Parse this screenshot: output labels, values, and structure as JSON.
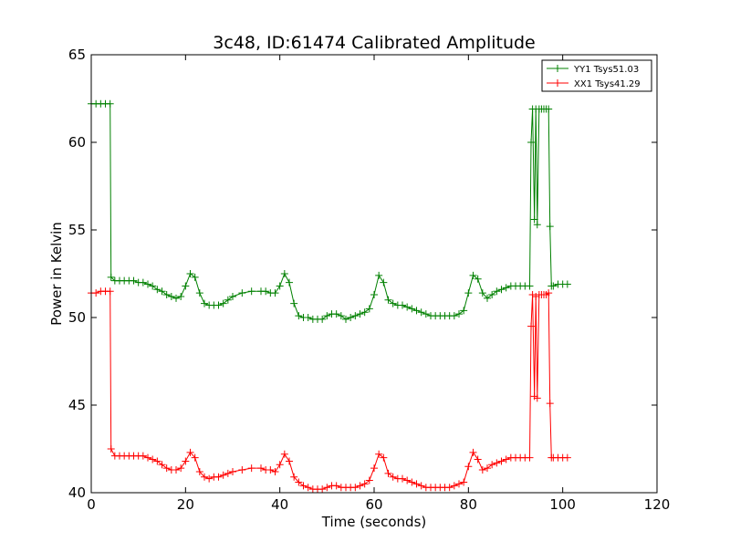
{
  "chart_data": {
    "type": "line",
    "title": "3c48, ID:61474 Calibrated Amplitude",
    "xlabel": "Time (seconds)",
    "ylabel": "Power in Kelvin",
    "xlim": [
      0,
      120
    ],
    "ylim": [
      40,
      65
    ],
    "xticks": [
      0,
      20,
      40,
      60,
      80,
      100,
      120
    ],
    "yticks": [
      40,
      45,
      50,
      55,
      60,
      65
    ],
    "grid": false,
    "legend_position": "top-right",
    "marker": "plus",
    "series": [
      {
        "name": "YY1 Tsys51.03",
        "color": "#008000",
        "points": [
          [
            0,
            62.2
          ],
          [
            1,
            62.2
          ],
          [
            2,
            62.2
          ],
          [
            3,
            62.2
          ],
          [
            4,
            62.2
          ],
          [
            4.2,
            52.3
          ],
          [
            5,
            52.1
          ],
          [
            6,
            52.1
          ],
          [
            7,
            52.1
          ],
          [
            8,
            52.1
          ],
          [
            9,
            52.1
          ],
          [
            10,
            52.0
          ],
          [
            11,
            52.0
          ],
          [
            12,
            51.9
          ],
          [
            13,
            51.8
          ],
          [
            14,
            51.6
          ],
          [
            15,
            51.5
          ],
          [
            16,
            51.3
          ],
          [
            17,
            51.2
          ],
          [
            18,
            51.1
          ],
          [
            19,
            51.2
          ],
          [
            20,
            51.8
          ],
          [
            21,
            52.5
          ],
          [
            22,
            52.3
          ],
          [
            23,
            51.4
          ],
          [
            24,
            50.8
          ],
          [
            25,
            50.7
          ],
          [
            26,
            50.7
          ],
          [
            27,
            50.7
          ],
          [
            28,
            50.8
          ],
          [
            29,
            51.0
          ],
          [
            30,
            51.2
          ],
          [
            32,
            51.4
          ],
          [
            34,
            51.5
          ],
          [
            36,
            51.5
          ],
          [
            37,
            51.5
          ],
          [
            38,
            51.4
          ],
          [
            39,
            51.4
          ],
          [
            40,
            51.8
          ],
          [
            41,
            52.5
          ],
          [
            42,
            52.0
          ],
          [
            43,
            50.8
          ],
          [
            44,
            50.1
          ],
          [
            45,
            50.0
          ],
          [
            46,
            50.0
          ],
          [
            47,
            49.9
          ],
          [
            48,
            49.9
          ],
          [
            49,
            49.9
          ],
          [
            50,
            50.1
          ],
          [
            51,
            50.2
          ],
          [
            52,
            50.2
          ],
          [
            53,
            50.1
          ],
          [
            54,
            49.9
          ],
          [
            55,
            50.0
          ],
          [
            56,
            50.1
          ],
          [
            57,
            50.2
          ],
          [
            58,
            50.3
          ],
          [
            59,
            50.5
          ],
          [
            60,
            51.3
          ],
          [
            61,
            52.4
          ],
          [
            62,
            52.0
          ],
          [
            63,
            51.0
          ],
          [
            64,
            50.8
          ],
          [
            65,
            50.7
          ],
          [
            66,
            50.7
          ],
          [
            67,
            50.6
          ],
          [
            68,
            50.5
          ],
          [
            69,
            50.4
          ],
          [
            70,
            50.3
          ],
          [
            71,
            50.2
          ],
          [
            72,
            50.1
          ],
          [
            73,
            50.1
          ],
          [
            74,
            50.1
          ],
          [
            75,
            50.1
          ],
          [
            76,
            50.1
          ],
          [
            77,
            50.1
          ],
          [
            78,
            50.2
          ],
          [
            79,
            50.4
          ],
          [
            80,
            51.4
          ],
          [
            81,
            52.4
          ],
          [
            82,
            52.2
          ],
          [
            83,
            51.4
          ],
          [
            84,
            51.1
          ],
          [
            85,
            51.3
          ],
          [
            86,
            51.5
          ],
          [
            87,
            51.6
          ],
          [
            88,
            51.7
          ],
          [
            89,
            51.8
          ],
          [
            90,
            51.8
          ],
          [
            91,
            51.8
          ],
          [
            92,
            51.8
          ],
          [
            93,
            51.8
          ],
          [
            93.3,
            60.0
          ],
          [
            93.6,
            61.9
          ],
          [
            94.0,
            55.6
          ],
          [
            94.3,
            61.9
          ],
          [
            94.6,
            55.3
          ],
          [
            95,
            61.9
          ],
          [
            95.5,
            61.9
          ],
          [
            96,
            61.9
          ],
          [
            96.5,
            61.9
          ],
          [
            97,
            61.9
          ],
          [
            97.3,
            55.2
          ],
          [
            97.6,
            51.8
          ],
          [
            98,
            51.8
          ],
          [
            99,
            51.9
          ],
          [
            100,
            51.9
          ],
          [
            101,
            51.9
          ]
        ]
      },
      {
        "name": "XX1 Tsys41.29",
        "color": "#ff0000",
        "points": [
          [
            0,
            51.4
          ],
          [
            1,
            51.4
          ],
          [
            2,
            51.5
          ],
          [
            3,
            51.5
          ],
          [
            4,
            51.5
          ],
          [
            4.2,
            42.5
          ],
          [
            5,
            42.1
          ],
          [
            6,
            42.1
          ],
          [
            7,
            42.1
          ],
          [
            8,
            42.1
          ],
          [
            9,
            42.1
          ],
          [
            10,
            42.1
          ],
          [
            11,
            42.1
          ],
          [
            12,
            42.0
          ],
          [
            13,
            41.9
          ],
          [
            14,
            41.8
          ],
          [
            15,
            41.6
          ],
          [
            16,
            41.4
          ],
          [
            17,
            41.3
          ],
          [
            18,
            41.3
          ],
          [
            19,
            41.4
          ],
          [
            20,
            41.8
          ],
          [
            21,
            42.3
          ],
          [
            22,
            42.0
          ],
          [
            23,
            41.2
          ],
          [
            24,
            40.9
          ],
          [
            25,
            40.8
          ],
          [
            26,
            40.9
          ],
          [
            27,
            40.9
          ],
          [
            28,
            41.0
          ],
          [
            29,
            41.1
          ],
          [
            30,
            41.2
          ],
          [
            32,
            41.3
          ],
          [
            34,
            41.4
          ],
          [
            36,
            41.4
          ],
          [
            37,
            41.3
          ],
          [
            38,
            41.3
          ],
          [
            39,
            41.2
          ],
          [
            40,
            41.6
          ],
          [
            41,
            42.2
          ],
          [
            42,
            41.8
          ],
          [
            43,
            40.9
          ],
          [
            44,
            40.6
          ],
          [
            45,
            40.4
          ],
          [
            46,
            40.3
          ],
          [
            47,
            40.2
          ],
          [
            48,
            40.2
          ],
          [
            49,
            40.2
          ],
          [
            50,
            40.3
          ],
          [
            51,
            40.4
          ],
          [
            52,
            40.4
          ],
          [
            53,
            40.3
          ],
          [
            54,
            40.3
          ],
          [
            55,
            40.3
          ],
          [
            56,
            40.3
          ],
          [
            57,
            40.4
          ],
          [
            58,
            40.5
          ],
          [
            59,
            40.7
          ],
          [
            60,
            41.4
          ],
          [
            61,
            42.2
          ],
          [
            62,
            42.0
          ],
          [
            63,
            41.1
          ],
          [
            64,
            40.9
          ],
          [
            65,
            40.8
          ],
          [
            66,
            40.8
          ],
          [
            67,
            40.7
          ],
          [
            68,
            40.6
          ],
          [
            69,
            40.5
          ],
          [
            70,
            40.4
          ],
          [
            71,
            40.3
          ],
          [
            72,
            40.3
          ],
          [
            73,
            40.3
          ],
          [
            74,
            40.3
          ],
          [
            75,
            40.3
          ],
          [
            76,
            40.3
          ],
          [
            77,
            40.4
          ],
          [
            78,
            40.5
          ],
          [
            79,
            40.6
          ],
          [
            80,
            41.5
          ],
          [
            81,
            42.3
          ],
          [
            82,
            41.9
          ],
          [
            83,
            41.3
          ],
          [
            84,
            41.4
          ],
          [
            85,
            41.6
          ],
          [
            86,
            41.7
          ],
          [
            87,
            41.8
          ],
          [
            88,
            41.9
          ],
          [
            89,
            42.0
          ],
          [
            90,
            42.0
          ],
          [
            91,
            42.0
          ],
          [
            92,
            42.0
          ],
          [
            93,
            42.0
          ],
          [
            93.3,
            49.5
          ],
          [
            93.6,
            51.3
          ],
          [
            94.0,
            45.5
          ],
          [
            94.3,
            51.2
          ],
          [
            94.6,
            45.4
          ],
          [
            95,
            51.3
          ],
          [
            95.5,
            51.3
          ],
          [
            96,
            51.3
          ],
          [
            96.5,
            51.3
          ],
          [
            97,
            51.4
          ],
          [
            97.3,
            45.1
          ],
          [
            97.6,
            42.0
          ],
          [
            98,
            42.0
          ],
          [
            99,
            42.0
          ],
          [
            100,
            42.0
          ],
          [
            101,
            42.0
          ]
        ]
      }
    ]
  }
}
